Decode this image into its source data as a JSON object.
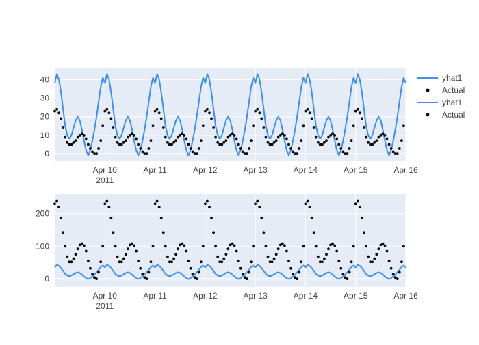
{
  "colors": {
    "plot_bg": "#e5ecf6",
    "grid": "#ffffff",
    "yhat_line": "#3b8ff0",
    "actual_marker": "#000000",
    "tick_text": "#444444"
  },
  "legend": {
    "placement": "top-right",
    "items": [
      {
        "label": "yhat1",
        "kind": "line"
      },
      {
        "label": "Actual",
        "kind": "marker"
      },
      {
        "label": "yhat1",
        "kind": "line"
      },
      {
        "label": "Actual",
        "kind": "marker"
      }
    ]
  },
  "chart_data": [
    {
      "type": "line",
      "xlabel": "",
      "ylabel": "",
      "x_range": [
        "2011-04-09 00:00",
        "2011-04-16 00:00"
      ],
      "x_ticks": [
        "Apr 10",
        "Apr 11",
        "Apr 12",
        "Apr 13",
        "Apr 14",
        "Apr 15",
        "Apr 16"
      ],
      "x_year_label": "2011",
      "y_ticks": [
        0,
        10,
        20,
        30,
        40
      ],
      "ylim": [
        -4,
        46
      ],
      "grid": true,
      "hours": [
        0,
        1,
        2,
        3,
        4,
        5,
        6,
        7,
        8,
        9,
        10,
        11,
        12,
        13,
        14,
        15,
        16,
        17,
        18,
        19,
        20,
        21,
        22,
        23
      ],
      "series": [
        {
          "name": "yhat1",
          "kind": "line",
          "pattern_per_day": [
            38,
            43,
            40,
            33,
            24,
            15,
            10,
            8,
            10,
            14,
            18,
            20,
            18,
            13,
            7,
            2,
            -1,
            2,
            7,
            13,
            20,
            28,
            36,
            41
          ],
          "repeat_days": 7
        },
        {
          "name": "Actual",
          "kind": "markers",
          "pattern_per_day": [
            23,
            24,
            22,
            19,
            14,
            9,
            6,
            5,
            5,
            6,
            7,
            9,
            10,
            11,
            10,
            8,
            5,
            3,
            1,
            0,
            0,
            3,
            7,
            15
          ],
          "repeat_days": 7
        }
      ]
    },
    {
      "type": "line",
      "xlabel": "",
      "ylabel": "",
      "x_range": [
        "2011-04-09 00:00",
        "2011-04-16 00:00"
      ],
      "x_ticks": [
        "Apr 10",
        "Apr 11",
        "Apr 12",
        "Apr 13",
        "Apr 14",
        "Apr 15",
        "Apr 16"
      ],
      "x_year_label": "2011",
      "y_ticks": [
        0,
        100,
        200
      ],
      "ylim": [
        -25,
        260
      ],
      "grid": true,
      "hours": [
        0,
        1,
        2,
        3,
        4,
        5,
        6,
        7,
        8,
        9,
        10,
        11,
        12,
        13,
        14,
        15,
        16,
        17,
        18,
        19,
        20,
        21,
        22,
        23
      ],
      "series": [
        {
          "name": "yhat1",
          "kind": "line",
          "pattern_per_day": [
            35,
            43,
            40,
            33,
            24,
            15,
            10,
            8,
            10,
            14,
            18,
            20,
            18,
            13,
            7,
            2,
            -1,
            2,
            7,
            13,
            20,
            28,
            36,
            41
          ],
          "repeat_days": 7
        },
        {
          "name": "Actual",
          "kind": "markers",
          "pattern_per_day": [
            230,
            238,
            220,
            187,
            142,
            100,
            68,
            52,
            52,
            62,
            75,
            92,
            104,
            108,
            102,
            85,
            55,
            32,
            14,
            4,
            0,
            20,
            52,
            100
          ],
          "repeat_days": 7
        }
      ]
    }
  ]
}
